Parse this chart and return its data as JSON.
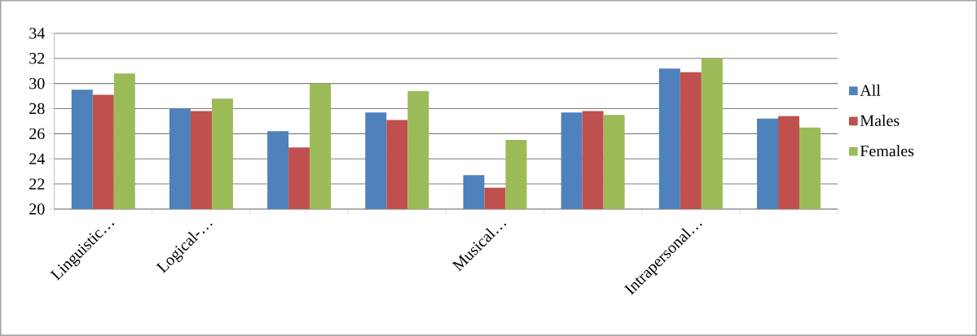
{
  "chart_data": {
    "type": "bar",
    "categories": [
      "Linguistic…",
      "Logical-…",
      null,
      null,
      "Musical…",
      null,
      "Intrapersonal…",
      null
    ],
    "series": [
      {
        "name": "All",
        "color": "#4f81bd",
        "values": [
          29.5,
          28.0,
          26.2,
          27.7,
          22.7,
          27.7,
          31.2,
          27.2
        ]
      },
      {
        "name": "Males",
        "color": "#c0504d",
        "values": [
          29.1,
          27.8,
          24.9,
          27.1,
          21.7,
          27.8,
          30.9,
          27.4
        ]
      },
      {
        "name": "Females",
        "color": "#9bbb59",
        "values": [
          30.8,
          28.8,
          30.0,
          29.4,
          25.5,
          27.5,
          32.0,
          26.5
        ]
      }
    ],
    "ylim": [
      20,
      34
    ],
    "yticks": [
      20,
      22,
      24,
      26,
      28,
      30,
      32,
      34
    ],
    "grid": "y",
    "legend": "right"
  }
}
